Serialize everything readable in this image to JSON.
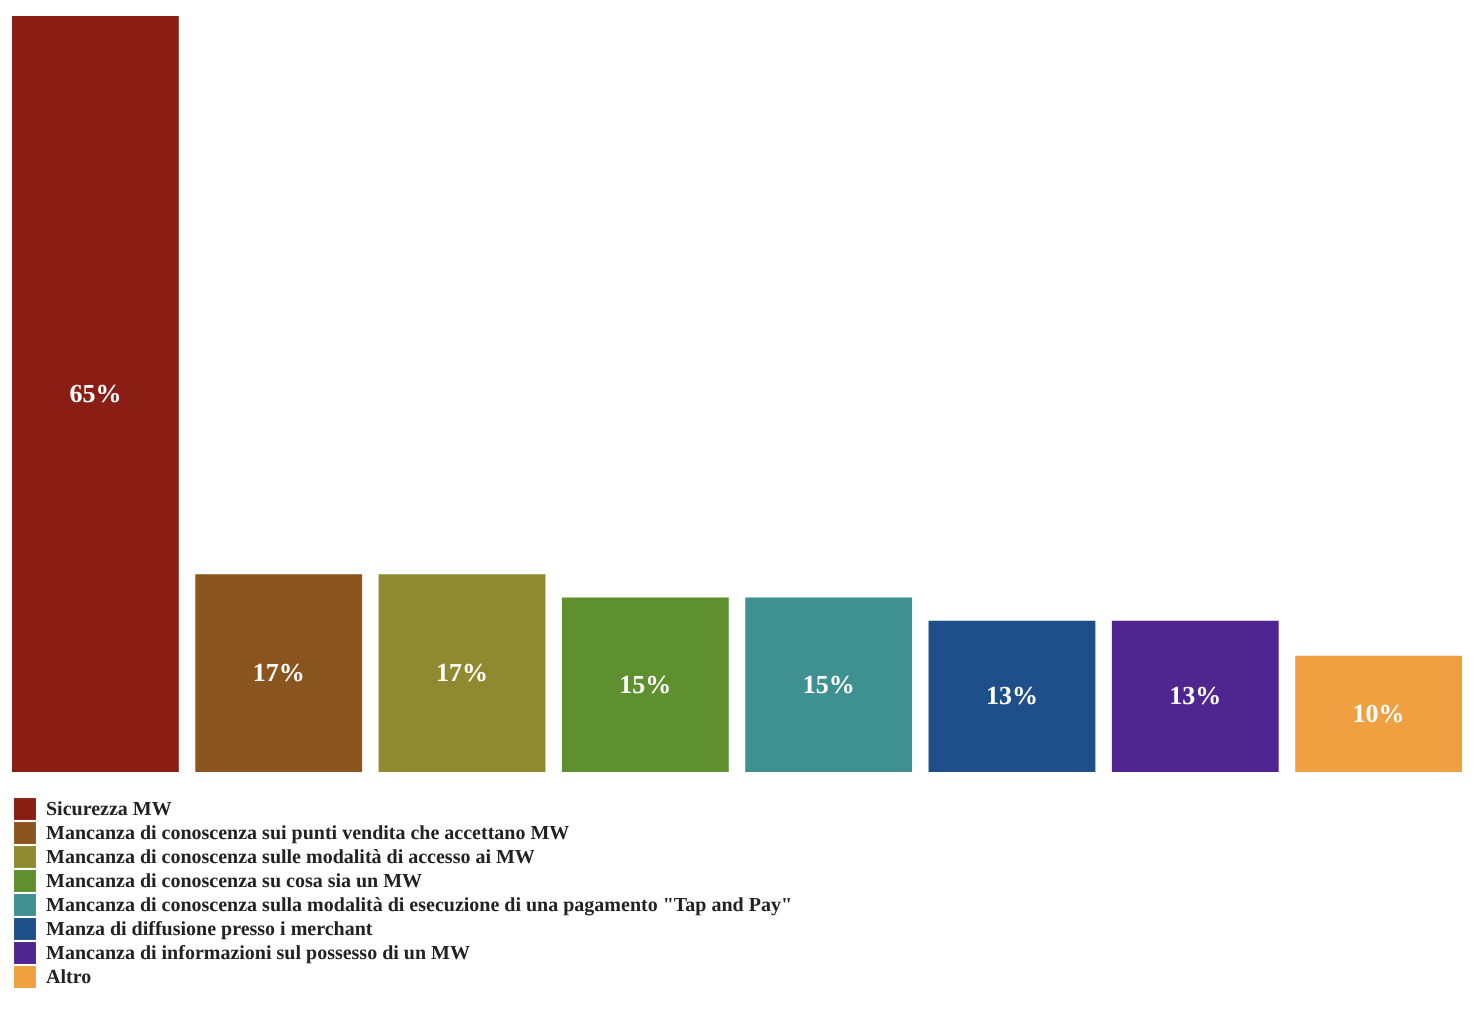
{
  "chart_data": {
    "type": "bar",
    "categories": [
      null,
      null,
      null,
      null,
      null,
      null,
      null,
      null
    ],
    "stacked": true,
    "series": [
      {
        "name": "Sicurezza MW",
        "color": "#8b1e14",
        "values": [
          65,
          null,
          null,
          null,
          null,
          null,
          null,
          null
        ],
        "value_labels": [
          "65%",
          null,
          null,
          null,
          null,
          null,
          null,
          null
        ]
      },
      {
        "name": "Mancanza di conoscenza sui punti vendita che accettano MW",
        "color": "#8b5520",
        "values": [
          null,
          17,
          null,
          null,
          null,
          null,
          null,
          null
        ],
        "value_labels": [
          null,
          "17%",
          null,
          null,
          null,
          null,
          null,
          null
        ]
      },
      {
        "name": "Mancanza di conoscenza sulle modalità di accesso ai MW",
        "color": "#8f8a30",
        "values": [
          null,
          null,
          17,
          null,
          null,
          null,
          null,
          null
        ],
        "value_labels": [
          null,
          null,
          "17%",
          null,
          null,
          null,
          null,
          null
        ]
      },
      {
        "name": "Mancanza di conoscenza su cosa sia un MW",
        "color": "#5e9030",
        "values": [
          null,
          null,
          null,
          15,
          null,
          null,
          null,
          null
        ],
        "value_labels": [
          null,
          null,
          null,
          "15%",
          null,
          null,
          null,
          null
        ]
      },
      {
        "name": "Mancanza di conoscenza sulla modalità di esecuzione di una pagamento \"Tap and Pay\"",
        "color": "#3f9090",
        "values": [
          null,
          null,
          null,
          null,
          15,
          null,
          null,
          null
        ],
        "value_labels": [
          null,
          null,
          null,
          null,
          "15%",
          null,
          null,
          null
        ]
      },
      {
        "name": "Manza di diffusione presso i merchant",
        "color": "#1f4f8a",
        "values": [
          null,
          null,
          null,
          null,
          null,
          13,
          null,
          null
        ],
        "value_labels": [
          null,
          null,
          null,
          null,
          null,
          "13%",
          null,
          null
        ]
      },
      {
        "name": "Mancanza di informazioni sul possesso di un MW",
        "color": "#4f2590",
        "values": [
          null,
          null,
          null,
          null,
          null,
          null,
          13,
          null
        ],
        "value_labels": [
          null,
          null,
          null,
          null,
          null,
          null,
          "13%",
          null
        ]
      },
      {
        "name": "Altro",
        "color": "#f0a040",
        "values": [
          null,
          null,
          null,
          null,
          null,
          null,
          null,
          10
        ],
        "value_labels": [
          null,
          null,
          null,
          null,
          null,
          null,
          null,
          "10%"
        ]
      }
    ],
    "legend": "bottom"
  }
}
